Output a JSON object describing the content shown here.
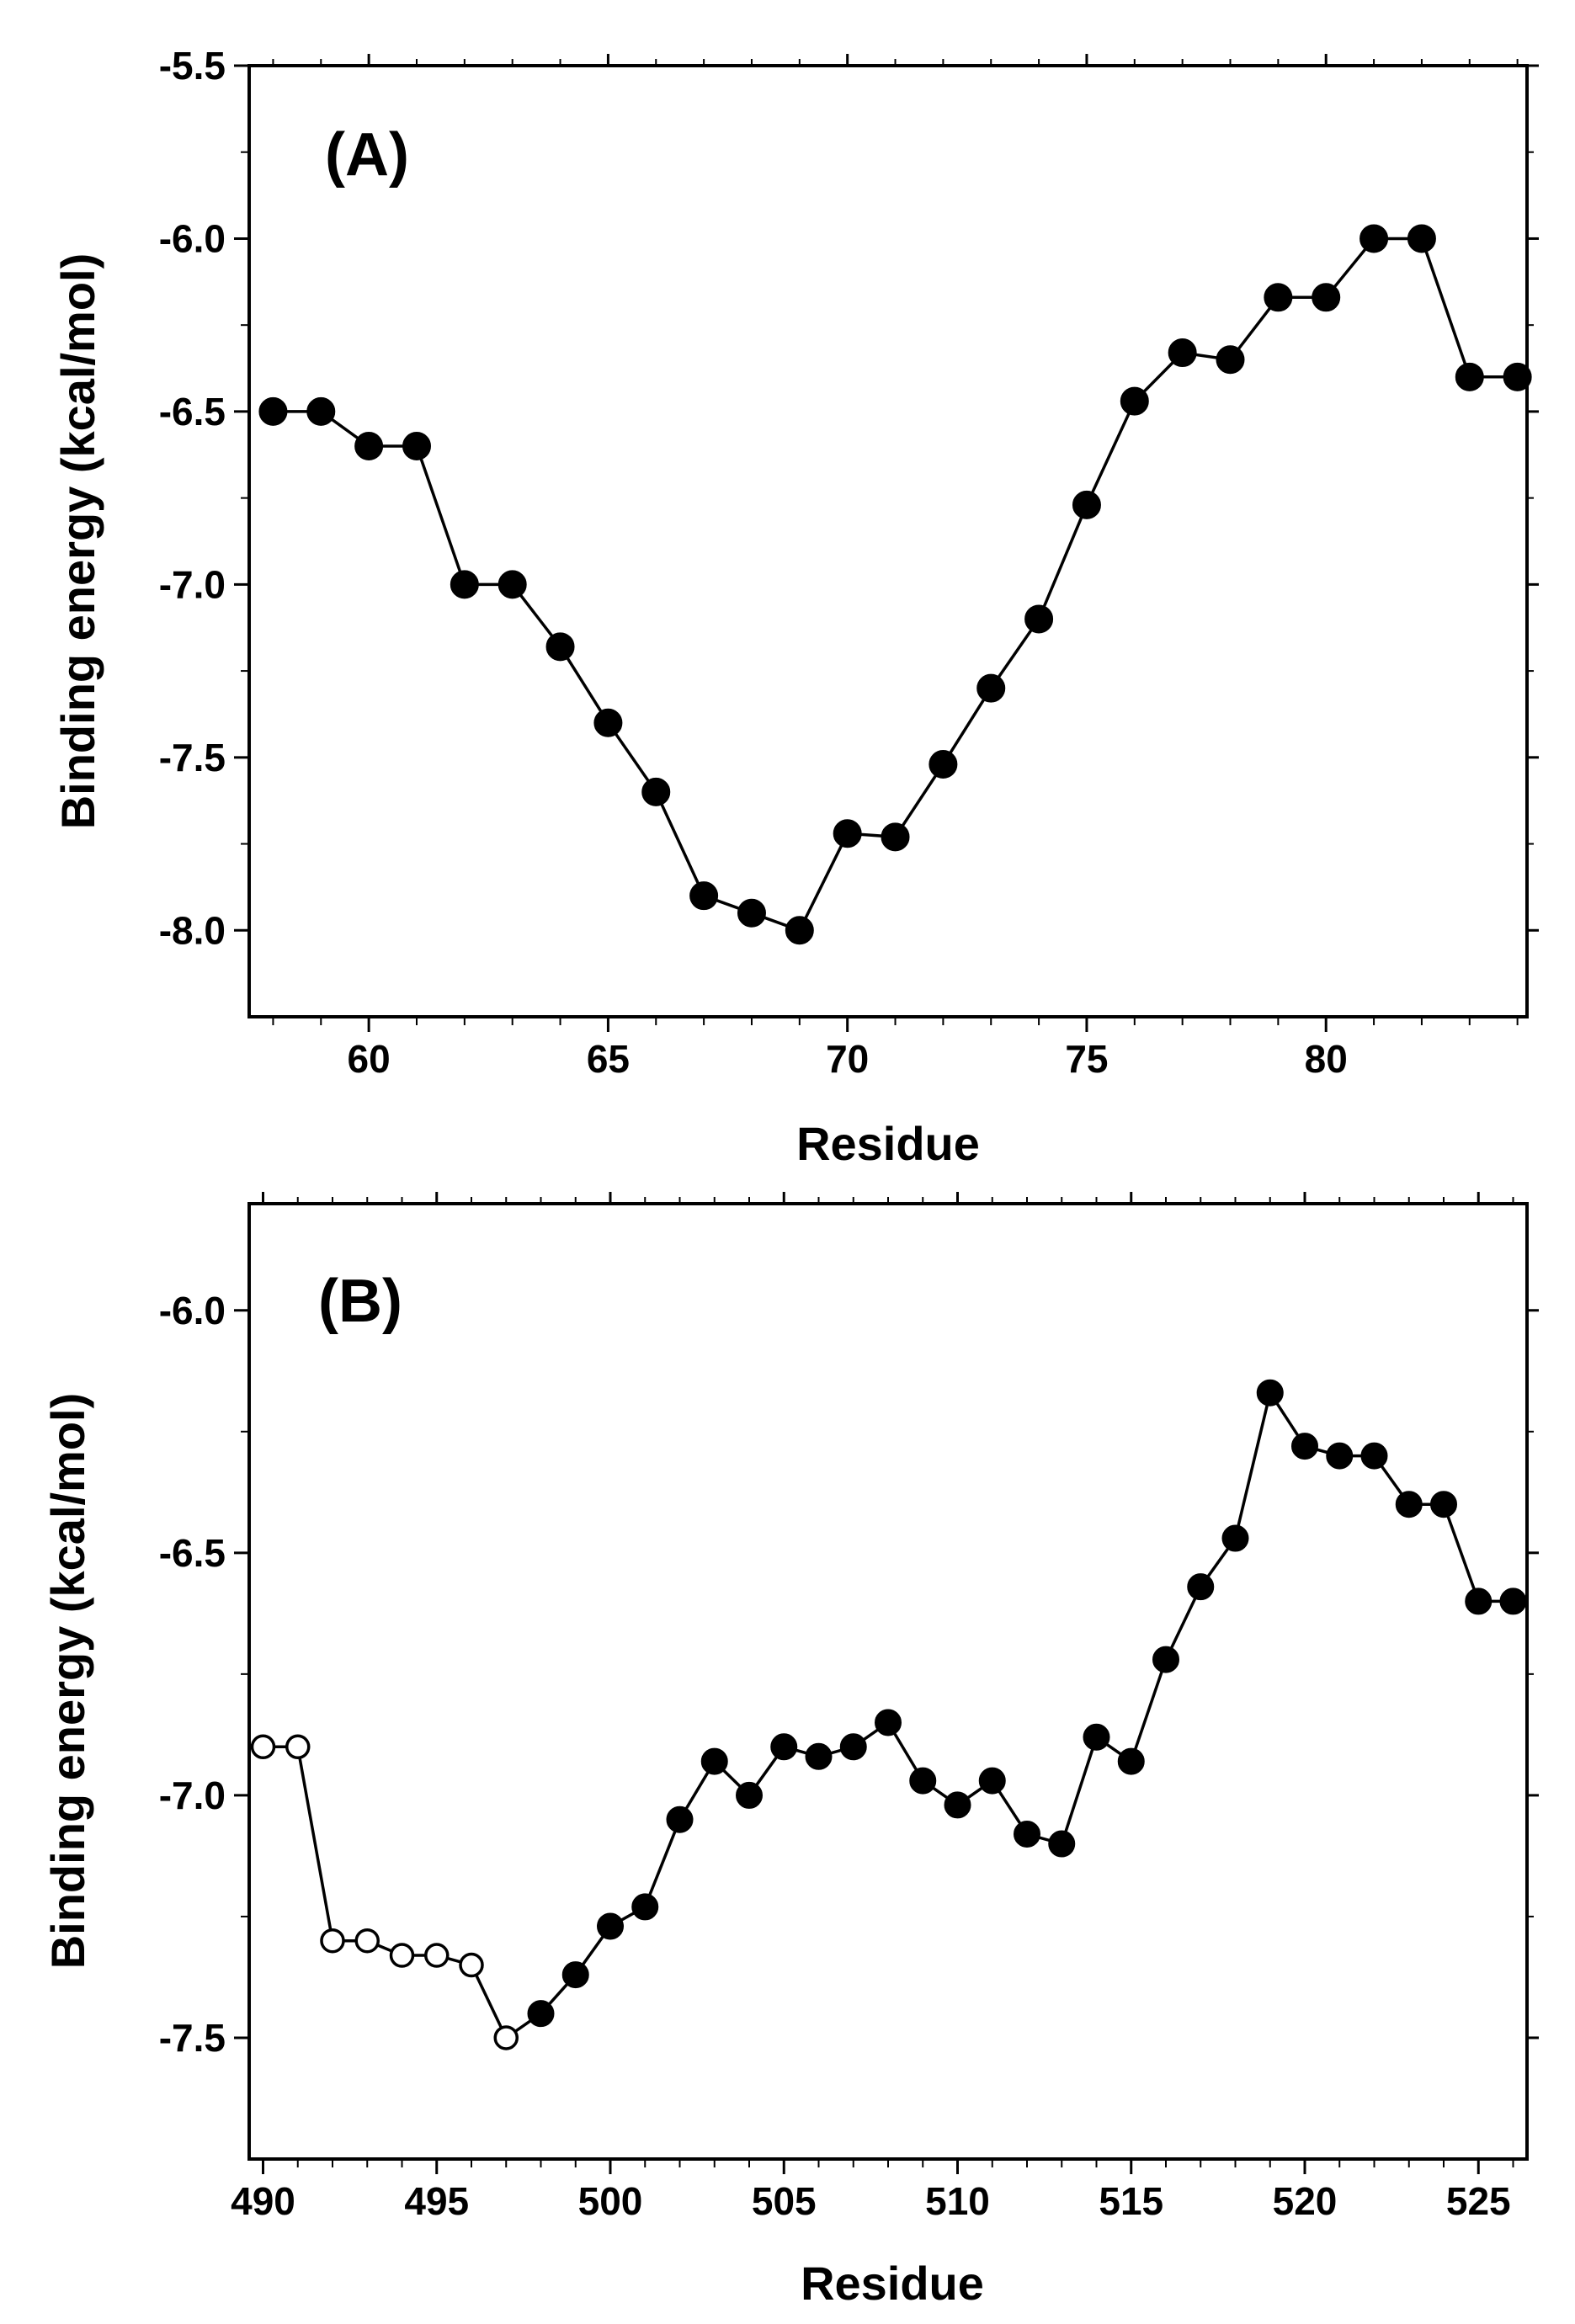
{
  "chart_data": [
    {
      "type": "line",
      "panel_label": "(A)",
      "xlabel": "Residue",
      "ylabel": "Binding energy (kcal/mol)",
      "xlim": [
        57.5,
        84.2
      ],
      "ylim": [
        -8.25,
        -5.5
      ],
      "xticks": [
        60,
        65,
        70,
        75,
        80
      ],
      "xtick_labels": [
        "60",
        "65",
        "70",
        "75",
        "80"
      ],
      "yticks": [
        -5.5,
        -6.0,
        -6.5,
        -7.0,
        -7.5,
        -8.0
      ],
      "ytick_labels": [
        "-5.5",
        "-6.0",
        "-6.5",
        "-7.0",
        "-7.5",
        "-8.0"
      ],
      "grid": false,
      "series": [
        {
          "name": "binding energy",
          "marker": "filled-circle",
          "color": "#000000",
          "x": [
            58,
            59,
            60,
            61,
            62,
            63,
            64,
            65,
            66,
            67,
            68,
            69,
            70,
            71,
            72,
            73,
            74,
            75,
            76,
            77,
            78,
            79,
            80,
            81,
            82,
            83,
            84
          ],
          "y": [
            -6.5,
            -6.5,
            -6.6,
            -6.6,
            -7.0,
            -7.0,
            -7.18,
            -7.4,
            -7.6,
            -7.9,
            -7.95,
            -8.0,
            -7.72,
            -7.73,
            -7.52,
            -7.3,
            -7.1,
            -6.77,
            -6.47,
            -6.33,
            -6.35,
            -6.17,
            -6.17,
            -6.0,
            -6.0,
            -6.4,
            -6.4
          ]
        }
      ]
    },
    {
      "type": "line",
      "panel_label": "(B)",
      "xlabel": "Residue",
      "ylabel": "Binding energy (kcal/mol)",
      "xlim": [
        489.6,
        526.4
      ],
      "ylim": [
        -7.75,
        -5.78
      ],
      "xticks": [
        490,
        495,
        500,
        505,
        510,
        515,
        520,
        525
      ],
      "xtick_labels": [
        "490",
        "495",
        "500",
        "505",
        "510",
        "515",
        "520",
        "525"
      ],
      "yticks": [
        -6.0,
        -6.5,
        -7.0,
        -7.5
      ],
      "ytick_labels": [
        "-6.0",
        "-6.5",
        "-7.0",
        "-7.5"
      ],
      "grid": false,
      "series": [
        {
          "name": "binding energy",
          "color": "#000000",
          "x": [
            490,
            491,
            492,
            493,
            494,
            495,
            496,
            497,
            498,
            499,
            500,
            501,
            502,
            503,
            504,
            505,
            506,
            507,
            508,
            509,
            510,
            511,
            512,
            513,
            514,
            515,
            516,
            517,
            518,
            519,
            520,
            521,
            522,
            523,
            524,
            525,
            526
          ],
          "y": [
            -6.9,
            -6.9,
            -7.3,
            -7.3,
            -7.33,
            -7.33,
            -7.35,
            -7.5,
            -7.45,
            -7.37,
            -7.27,
            -7.23,
            -7.05,
            -6.93,
            -7.0,
            -6.9,
            -6.92,
            -6.9,
            -6.85,
            -6.97,
            -7.02,
            -6.97,
            -7.08,
            -7.1,
            -6.88,
            -6.93,
            -6.72,
            -6.57,
            -6.47,
            -6.17,
            -6.28,
            -6.3,
            -6.3,
            -6.4,
            -6.4,
            -6.6,
            -6.6
          ],
          "hollow_markers_x": [
            490,
            491,
            492,
            493,
            494,
            495,
            496,
            497
          ]
        }
      ]
    }
  ]
}
